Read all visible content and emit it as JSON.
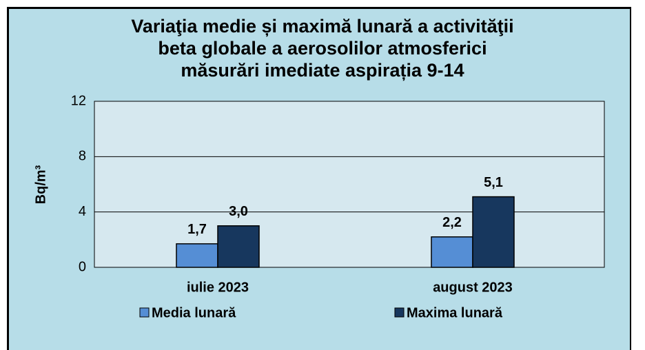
{
  "chart_data": {
    "type": "bar",
    "title": "Variaţia medie și maximă lunară a activităţii\nbeta globale  a aerosolilor atmosferici\nmăsurări imediate aspirația 9-14",
    "y_label": "Bq/m³",
    "categories": [
      "iulie 2023",
      "august 2023"
    ],
    "series": [
      {
        "name": "Media lunară",
        "color": "#558ed5",
        "values": [
          1.7,
          2.2
        ],
        "value_labels": [
          "1,7",
          "2,2"
        ]
      },
      {
        "name": "Maxima lunară",
        "color": "#17375e",
        "values": [
          3.0,
          5.1
        ],
        "value_labels": [
          "3,0",
          "5,1"
        ]
      }
    ],
    "ylim": [
      0,
      12
    ],
    "yticks": [
      0,
      4,
      8,
      12
    ],
    "grid": true
  }
}
